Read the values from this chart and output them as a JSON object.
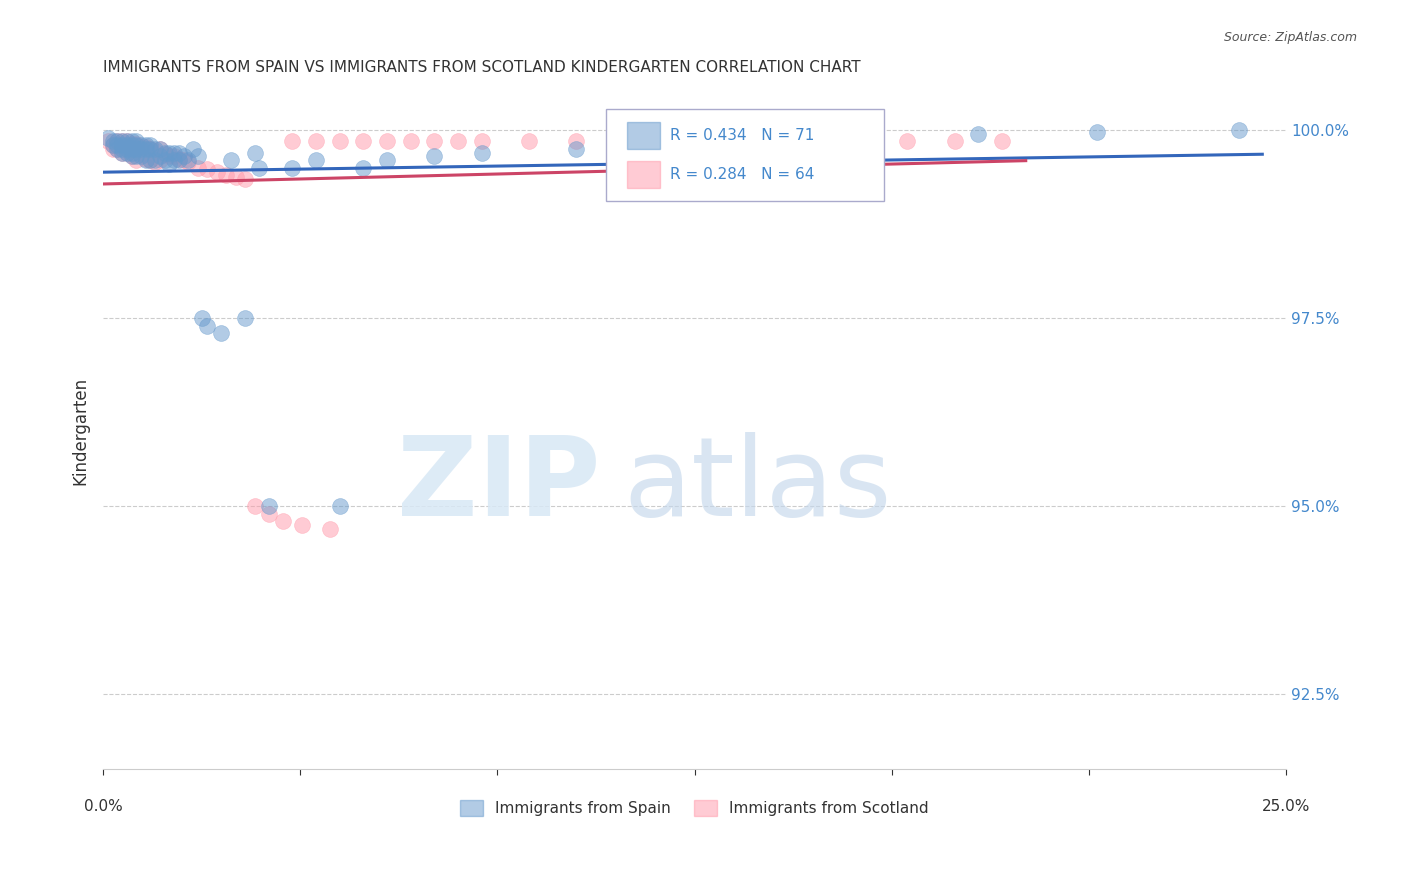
{
  "title": "IMMIGRANTS FROM SPAIN VS IMMIGRANTS FROM SCOTLAND KINDERGARTEN CORRELATION CHART",
  "source": "Source: ZipAtlas.com",
  "ylabel": "Kindergarten",
  "xmin": 0.0,
  "xmax": 0.25,
  "ymin": 0.915,
  "ymax": 1.005,
  "spain_color": "#6699CC",
  "scotland_color": "#FF99AA",
  "spain_R": 0.434,
  "spain_N": 71,
  "scotland_R": 0.284,
  "scotland_N": 64,
  "legend_label_spain": "Immigrants from Spain",
  "legend_label_scotland": "Immigrants from Scotland",
  "background_color": "#ffffff",
  "spain_x": [
    0.001,
    0.002,
    0.002,
    0.003,
    0.003,
    0.003,
    0.004,
    0.004,
    0.004,
    0.004,
    0.005,
    0.005,
    0.005,
    0.005,
    0.006,
    0.006,
    0.006,
    0.006,
    0.006,
    0.007,
    0.007,
    0.007,
    0.007,
    0.008,
    0.008,
    0.008,
    0.009,
    0.009,
    0.009,
    0.01,
    0.01,
    0.01,
    0.011,
    0.011,
    0.012,
    0.012,
    0.013,
    0.013,
    0.014,
    0.014,
    0.015,
    0.015,
    0.016,
    0.016,
    0.017,
    0.018,
    0.019,
    0.02,
    0.021,
    0.022,
    0.025,
    0.027,
    0.03,
    0.032,
    0.033,
    0.035,
    0.04,
    0.045,
    0.05,
    0.055,
    0.06,
    0.07,
    0.08,
    0.1,
    0.11,
    0.12,
    0.14,
    0.16,
    0.185,
    0.21,
    0.24
  ],
  "spain_y": [
    0.999,
    0.9985,
    0.998,
    0.9985,
    0.998,
    0.9975,
    0.9985,
    0.998,
    0.9975,
    0.997,
    0.9985,
    0.998,
    0.9975,
    0.997,
    0.9985,
    0.998,
    0.9975,
    0.997,
    0.9965,
    0.9985,
    0.998,
    0.9975,
    0.9965,
    0.998,
    0.9975,
    0.9965,
    0.998,
    0.9975,
    0.996,
    0.998,
    0.9975,
    0.996,
    0.9975,
    0.996,
    0.9975,
    0.9965,
    0.997,
    0.996,
    0.997,
    0.9955,
    0.997,
    0.996,
    0.997,
    0.996,
    0.9965,
    0.996,
    0.9975,
    0.9965,
    0.975,
    0.974,
    0.973,
    0.996,
    0.975,
    0.997,
    0.995,
    0.95,
    0.995,
    0.996,
    0.95,
    0.995,
    0.996,
    0.9965,
    0.997,
    0.9975,
    0.999,
    0.9995,
    0.9995,
    0.9995,
    0.9995,
    0.9998,
    1.0
  ],
  "scotland_x": [
    0.001,
    0.002,
    0.002,
    0.003,
    0.003,
    0.004,
    0.004,
    0.004,
    0.005,
    0.005,
    0.005,
    0.006,
    0.006,
    0.006,
    0.007,
    0.007,
    0.007,
    0.008,
    0.008,
    0.009,
    0.009,
    0.01,
    0.01,
    0.011,
    0.011,
    0.012,
    0.012,
    0.013,
    0.014,
    0.015,
    0.016,
    0.017,
    0.018,
    0.02,
    0.022,
    0.024,
    0.026,
    0.028,
    0.03,
    0.032,
    0.035,
    0.038,
    0.04,
    0.042,
    0.045,
    0.048,
    0.05,
    0.055,
    0.06,
    0.065,
    0.07,
    0.075,
    0.08,
    0.09,
    0.1,
    0.11,
    0.12,
    0.13,
    0.14,
    0.15,
    0.16,
    0.17,
    0.18,
    0.19
  ],
  "scotland_y": [
    0.9985,
    0.998,
    0.9975,
    0.9985,
    0.9975,
    0.9985,
    0.9978,
    0.997,
    0.9985,
    0.9978,
    0.997,
    0.9982,
    0.9975,
    0.9965,
    0.9982,
    0.9975,
    0.996,
    0.9978,
    0.9968,
    0.9978,
    0.9962,
    0.9975,
    0.996,
    0.9972,
    0.9958,
    0.9975,
    0.996,
    0.9968,
    0.9965,
    0.9965,
    0.9962,
    0.996,
    0.9958,
    0.995,
    0.9948,
    0.9944,
    0.994,
    0.9938,
    0.9935,
    0.95,
    0.949,
    0.948,
    0.9985,
    0.9475,
    0.9985,
    0.947,
    0.9985,
    0.9985,
    0.9985,
    0.9985,
    0.9985,
    0.9985,
    0.9985,
    0.9985,
    0.9985,
    0.9985,
    0.9985,
    0.9985,
    0.9985,
    0.9985,
    0.9985,
    0.9985,
    0.9985,
    0.9985
  ]
}
